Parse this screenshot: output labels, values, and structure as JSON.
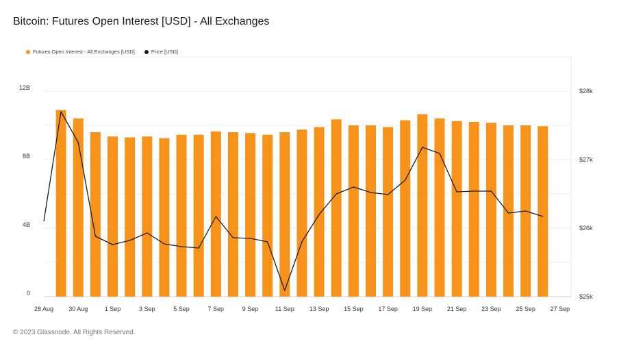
{
  "title": "Bitcoin: Futures Open Interest [USD] - All Exchanges",
  "footer": "© 2023 Glassnode. All Rights Reserved.",
  "colors": {
    "bar": "#f7931a",
    "line": "#1c1c1c",
    "grid": "#ececec"
  },
  "chart_data": {
    "type": "bar",
    "title": "Bitcoin: Futures Open Interest [USD] - All Exchanges",
    "x_ticks": [
      "28 Aug",
      "30 Aug",
      "1 Sep",
      "3 Sep",
      "5 Sep",
      "7 Sep",
      "9 Sep",
      "11 Sep",
      "13 Sep",
      "15 Sep",
      "17 Sep",
      "19 Sep",
      "21 Sep",
      "23 Sep",
      "25 Sep",
      "27 Sep"
    ],
    "y_left_ticks": [
      "0",
      "4B",
      "8B",
      "12B"
    ],
    "y_right_ticks": [
      "$25k",
      "$26k",
      "$27k",
      "$28k"
    ],
    "y_left_range": [
      0,
      14000000000.0
    ],
    "y_right_range": [
      25000,
      28500
    ],
    "categories": [
      "28 Aug",
      "29 Aug",
      "30 Aug",
      "31 Aug",
      "1 Sep",
      "2 Sep",
      "3 Sep",
      "4 Sep",
      "5 Sep",
      "6 Sep",
      "7 Sep",
      "8 Sep",
      "9 Sep",
      "10 Sep",
      "11 Sep",
      "12 Sep",
      "13 Sep",
      "14 Sep",
      "15 Sep",
      "16 Sep",
      "17 Sep",
      "18 Sep",
      "19 Sep",
      "20 Sep",
      "21 Sep",
      "22 Sep",
      "23 Sep",
      "24 Sep",
      "25 Sep",
      "26 Sep"
    ],
    "series": [
      {
        "name": "Futures Open Interest - All Exchanges [USD]",
        "type": "bar",
        "axis": "left",
        "values": [
          null,
          10900000000.0,
          10400000000.0,
          9600000000.0,
          9350000000.0,
          9300000000.0,
          9350000000.0,
          9250000000.0,
          9450000000.0,
          9450000000.0,
          9650000000.0,
          9600000000.0,
          9550000000.0,
          9450000000.0,
          9600000000.0,
          9750000000.0,
          9900000000.0,
          10350000000.0,
          10000000000.0,
          10000000000.0,
          9900000000.0,
          10300000000.0,
          10650000000.0,
          10400000000.0,
          10250000000.0,
          10200000000.0,
          10150000000.0,
          10000000000.0,
          10000000000.0,
          9950000000.0
        ]
      },
      {
        "name": "Price [USD]",
        "type": "line",
        "axis": "right",
        "values": [
          26100,
          27700,
          27250,
          25880,
          25760,
          25820,
          25930,
          25770,
          25730,
          25710,
          26170,
          25860,
          25850,
          25800,
          25090,
          25800,
          26200,
          26500,
          26600,
          26520,
          26490,
          26700,
          27180,
          27090,
          26530,
          26540,
          26540,
          26220,
          26250,
          26170
        ]
      }
    ],
    "legend_position": "top-left",
    "grid": true
  }
}
